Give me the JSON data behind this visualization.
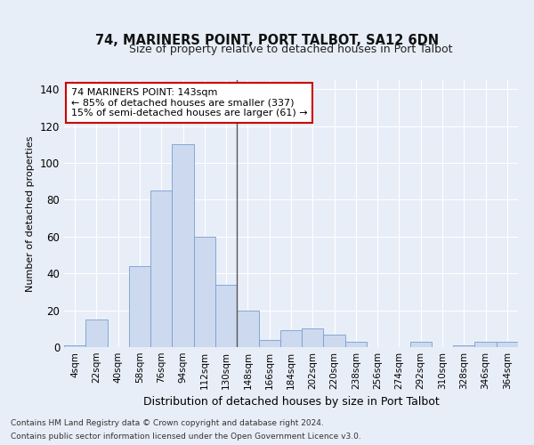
{
  "title": "74, MARINERS POINT, PORT TALBOT, SA12 6DN",
  "subtitle": "Size of property relative to detached houses in Port Talbot",
  "xlabel": "Distribution of detached houses by size in Port Talbot",
  "ylabel": "Number of detached properties",
  "categories": [
    "4sqm",
    "22sqm",
    "40sqm",
    "58sqm",
    "76sqm",
    "94sqm",
    "112sqm",
    "130sqm",
    "148sqm",
    "166sqm",
    "184sqm",
    "202sqm",
    "220sqm",
    "238sqm",
    "256sqm",
    "274sqm",
    "292sqm",
    "310sqm",
    "328sqm",
    "346sqm",
    "364sqm"
  ],
  "bar_values": [
    1,
    15,
    0,
    44,
    85,
    110,
    60,
    34,
    20,
    4,
    9,
    10,
    7,
    3,
    0,
    0,
    3,
    0,
    1,
    3,
    3
  ],
  "bar_color": "#ccd9ef",
  "bar_edge_color": "#7a9ecc",
  "background_color": "#e8eef8",
  "fig_background_color": "#e8eef8",
  "grid_color": "#ffffff",
  "vline_color": "#555555",
  "annotation_text": "74 MARINERS POINT: 143sqm\n← 85% of detached houses are smaller (337)\n15% of semi-detached houses are larger (61) →",
  "annotation_box_facecolor": "#ffffff",
  "annotation_box_edgecolor": "#cc0000",
  "ylim": [
    0,
    145
  ],
  "yticks": [
    0,
    20,
    40,
    60,
    80,
    100,
    120,
    140
  ],
  "footer_line1": "Contains HM Land Registry data © Crown copyright and database right 2024.",
  "footer_line2": "Contains public sector information licensed under the Open Government Licence v3.0."
}
